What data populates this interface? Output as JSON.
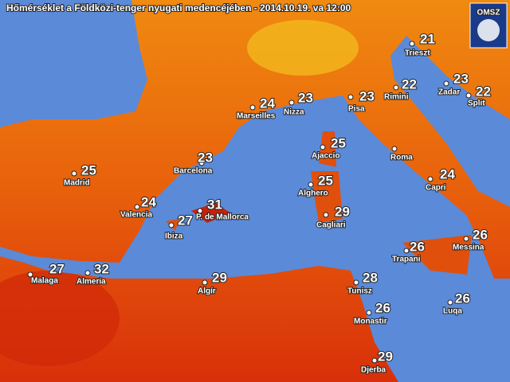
{
  "title": "Hőmérséklet a Földközi-tenger nyugati medencéjében - 2014.10.19. va 12:00",
  "logo": "OMSZ",
  "cities": [
    {
      "name": "Trieszt",
      "temp": 21
    },
    {
      "name": "Zadar",
      "temp": 23
    },
    {
      "name": "Split",
      "temp": 22
    },
    {
      "name": "Rimini",
      "temp": 22
    },
    {
      "name": "Pisa",
      "temp": 23
    },
    {
      "name": "Nizza",
      "temp": 23
    },
    {
      "name": "Marseilles",
      "temp": 24
    },
    {
      "name": "Ajaccio",
      "temp": 25
    },
    {
      "name": "Roma"
    },
    {
      "name": "Barcelona",
      "temp": 23
    },
    {
      "name": "Madrid",
      "temp": 25
    },
    {
      "name": "Alghero",
      "temp": 25
    },
    {
      "name": "Capri",
      "temp": 24
    },
    {
      "name": "Valencia",
      "temp": 24
    },
    {
      "name": "P. de Mallorca",
      "temp": 31
    },
    {
      "name": "Ibiza",
      "temp": 27
    },
    {
      "name": "Cagliari",
      "temp": 29
    },
    {
      "name": "Messina",
      "temp": 26
    },
    {
      "name": "Trapani",
      "temp": 26
    },
    {
      "name": "Malaga",
      "temp": 27
    },
    {
      "name": "Almeria",
      "temp": 32
    },
    {
      "name": "Algír",
      "temp": 29
    },
    {
      "name": "Tunisz",
      "temp": 28
    },
    {
      "name": "Monastir",
      "temp": 26
    },
    {
      "name": "Luqa",
      "temp": 26
    },
    {
      "name": "Djerba",
      "temp": 29
    }
  ]
}
